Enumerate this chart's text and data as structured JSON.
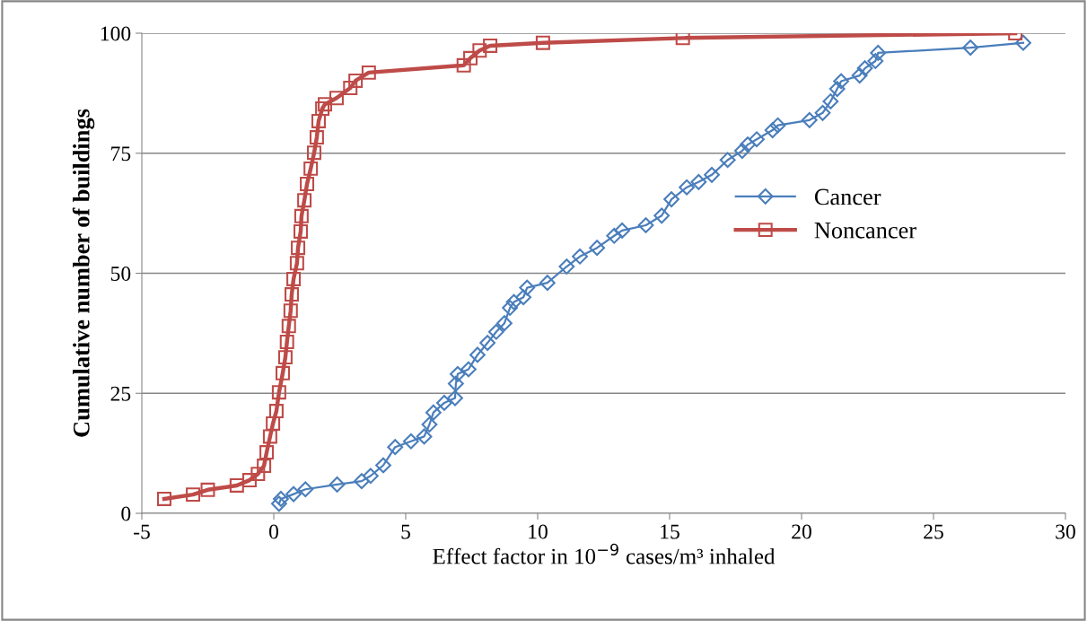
{
  "chart_data": {
    "type": "line",
    "xlabel": "Effect factor in 10$^{−9}$ cases/m³ inhaled",
    "ylabel": "Cumulative number of buildings",
    "xlim": [
      -5,
      30
    ],
    "xticks": [
      -5,
      0,
      5,
      10,
      15,
      20,
      25,
      30
    ],
    "ylim": [
      0,
      100
    ],
    "yticks": [
      0,
      25,
      50,
      75,
      100
    ],
    "grid": "y",
    "legend": "center right",
    "series": [
      {
        "name": "Cancer",
        "color": "#4a7ebb",
        "marker": "diamond",
        "x": [
          0.2,
          0.27,
          0.75,
          1.2,
          2.4,
          3.33,
          3.67,
          4.15,
          4.6,
          5.2,
          5.7,
          5.9,
          6.05,
          6.46,
          6.87,
          6.9,
          6.97,
          7.38,
          7.72,
          8.1,
          8.43,
          8.74,
          8.95,
          9.1,
          9.46,
          9.6,
          10.37,
          11.1,
          11.6,
          12.25,
          12.9,
          13.2,
          14.1,
          14.7,
          15.07,
          15.65,
          16.1,
          16.6,
          17.2,
          17.75,
          17.96,
          18.3,
          18.9,
          19.1,
          20.3,
          20.8,
          21.1,
          21.35,
          21.5,
          22.2,
          22.4,
          22.8,
          22.9,
          26.4,
          28.4
        ],
        "values": [
          2,
          3,
          4,
          5,
          6,
          6.7,
          7.8,
          10,
          13.8,
          15,
          16,
          18.5,
          21,
          23,
          24,
          27,
          29,
          30,
          33,
          35.5,
          37.8,
          39.6,
          42.8,
          44,
          45,
          47,
          48,
          51.4,
          53.5,
          55.3,
          57.8,
          58.9,
          60,
          62,
          65.4,
          67.9,
          69,
          70.5,
          73.6,
          75.5,
          76.8,
          77.9,
          79.8,
          80.8,
          81.9,
          83.4,
          85.8,
          88.4,
          90,
          91.2,
          92.7,
          94.2,
          95.9,
          97,
          98
        ]
      },
      {
        "name": "Noncancer",
        "color": "#be4b48",
        "marker": "square",
        "x": [
          -4.15,
          -3.06,
          -2.5,
          -1.4,
          -0.92,
          -0.6,
          -0.37,
          -0.27,
          -0.14,
          -0.03,
          0.1,
          0.2,
          0.34,
          0.44,
          0.5,
          0.57,
          0.64,
          0.68,
          0.75,
          0.88,
          0.92,
          1.02,
          1.05,
          1.16,
          1.26,
          1.4,
          1.53,
          1.63,
          1.7,
          1.84,
          1.94,
          2.38,
          2.9,
          3.1,
          3.6,
          7.2,
          7.45,
          7.8,
          8.2,
          10.2,
          15.5,
          28.1
        ],
        "values": [
          3,
          3.9,
          4.9,
          5.8,
          6.9,
          8.2,
          9.9,
          12.7,
          16,
          18.7,
          21.3,
          25.2,
          29.2,
          32.5,
          35.7,
          39,
          42.2,
          45.6,
          48.8,
          52.1,
          55.3,
          58.7,
          61.9,
          65.2,
          68.6,
          71.8,
          75.1,
          78.3,
          81.7,
          84.3,
          85.2,
          86.5,
          88.6,
          90.1,
          91.8,
          93.3,
          94.8,
          96.4,
          97.4,
          98,
          99,
          100
        ]
      }
    ]
  }
}
